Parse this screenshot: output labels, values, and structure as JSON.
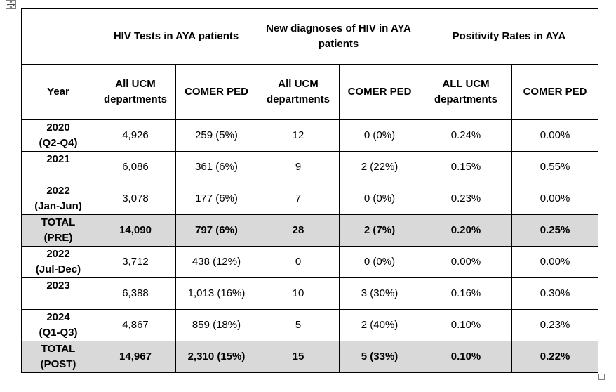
{
  "table": {
    "group_headers": [
      "",
      "HIV Tests in AYA patients",
      "New diagnoses of HIV in AYA patients",
      "Positivity Rates in AYA"
    ],
    "sub_headers": [
      "Year",
      "All  UCM departments",
      "COMER PED",
      "All UCM departments",
      "COMER PED",
      "ALL UCM departments",
      "COMER PED"
    ],
    "rows": [
      {
        "year": [
          "2020",
          "(Q2-Q4)"
        ],
        "tests_all": "4,926",
        "tests_comer": "259 (5%)",
        "dx_all": "12",
        "dx_comer": "0 (0%)",
        "pos_all": "0.24%",
        "pos_comer": "0.00%",
        "total": false
      },
      {
        "year": [
          "2021",
          ""
        ],
        "tests_all": "6,086",
        "tests_comer": "361 (6%)",
        "dx_all": "9",
        "dx_comer": "2 (22%)",
        "pos_all": "0.15%",
        "pos_comer": "0.55%",
        "total": false
      },
      {
        "year": [
          "2022",
          "(Jan-Jun)"
        ],
        "tests_all": "3,078",
        "tests_comer": "177 (6%)",
        "dx_all": "7",
        "dx_comer": "0 (0%)",
        "pos_all": "0.23%",
        "pos_comer": "0.00%",
        "total": false
      },
      {
        "year": [
          "TOTAL",
          "(PRE)"
        ],
        "tests_all": "14,090",
        "tests_comer": "797 (6%)",
        "dx_all": "28",
        "dx_comer": "2 (7%)",
        "pos_all": "0.20%",
        "pos_comer": "0.25%",
        "total": true
      },
      {
        "year": [
          "2022",
          "(Jul-Dec)"
        ],
        "tests_all": "3,712",
        "tests_comer": "438 (12%)",
        "dx_all": "0",
        "dx_comer": "0 (0%)",
        "pos_all": "0.00%",
        "pos_comer": "0.00%",
        "total": false
      },
      {
        "year": [
          "2023",
          ""
        ],
        "tests_all": "6,388",
        "tests_comer": "1,013 (16%)",
        "dx_all": "10",
        "dx_comer": "3 (30%)",
        "pos_all": "0.16%",
        "pos_comer": "0.30%",
        "total": false
      },
      {
        "year": [
          "2024",
          "(Q1-Q3)"
        ],
        "tests_all": "4,867",
        "tests_comer": "859 (18%)",
        "dx_all": "5",
        "dx_comer": "2 (40%)",
        "pos_all": "0.10%",
        "pos_comer": "0.23%",
        "total": false
      },
      {
        "year": [
          "TOTAL",
          "(POST)"
        ],
        "tests_all": "14,967",
        "tests_comer": "2,310 (15%)",
        "dx_all": "15",
        "dx_comer": "5 (33%)",
        "pos_all": "0.10%",
        "pos_comer": "0.22%",
        "total": true
      }
    ]
  },
  "icons": {
    "move_handle": "table-move-handle-icon",
    "resize_handle": "table-resize-handle-icon"
  },
  "colors": {
    "total_row_bg": "#d9d9d9",
    "border": "#000000"
  }
}
